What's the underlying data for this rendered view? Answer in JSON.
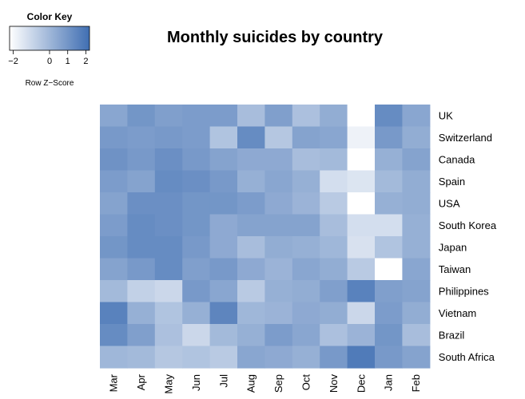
{
  "chart_data": {
    "type": "heatmap",
    "title": "Monthly suicides by country",
    "columns": [
      "Mar",
      "Apr",
      "May",
      "Jun",
      "Jul",
      "Aug",
      "Sep",
      "Oct",
      "Nov",
      "Dec",
      "Jan",
      "Feb"
    ],
    "rows": [
      "UK",
      "Switzerland",
      "Canada",
      "Spain",
      "USA",
      "South Korea",
      "Japan",
      "Taiwan",
      "Philippines",
      "Vietnam",
      "Brazil",
      "South Africa"
    ],
    "values": [
      [
        0.5,
        1.0,
        0.7,
        0.8,
        0.8,
        -0.2,
        0.7,
        -0.3,
        0.3,
        -2.2,
        1.3,
        0.5
      ],
      [
        0.9,
        0.8,
        0.9,
        0.8,
        -0.4,
        1.3,
        -0.5,
        0.6,
        0.5,
        -1.8,
        0.9,
        0.3
      ],
      [
        1.1,
        0.9,
        1.2,
        0.9,
        0.6,
        0.4,
        0.4,
        -0.2,
        -0.1,
        -2.2,
        0.2,
        0.6
      ],
      [
        0.8,
        0.6,
        1.3,
        1.2,
        0.9,
        0.2,
        0.5,
        0.2,
        -1.2,
        -1.4,
        -0.1,
        0.3
      ],
      [
        0.6,
        1.2,
        1.2,
        1.0,
        1.0,
        0.8,
        0.4,
        0.1,
        -0.6,
        -2.2,
        0.2,
        0.3
      ],
      [
        0.8,
        1.3,
        1.2,
        1.0,
        0.4,
        0.6,
        0.6,
        0.6,
        -0.2,
        -1.2,
        -1.2,
        0.2
      ],
      [
        1.0,
        1.3,
        1.3,
        0.9,
        0.4,
        -0.2,
        0.3,
        0.2,
        0.0,
        -1.3,
        -0.4,
        0.2
      ],
      [
        0.6,
        0.9,
        1.3,
        0.7,
        0.9,
        0.4,
        0.1,
        0.5,
        0.3,
        -0.6,
        -2.2,
        0.5
      ],
      [
        -0.1,
        -0.8,
        -1.0,
        0.9,
        0.5,
        -0.6,
        0.2,
        0.3,
        0.7,
        1.6,
        0.7,
        0.6
      ],
      [
        1.6,
        0.2,
        -0.4,
        0.2,
        1.5,
        0.0,
        0.1,
        0.4,
        0.3,
        -1.0,
        0.8,
        0.3
      ],
      [
        1.3,
        0.7,
        -0.3,
        -1.0,
        -0.1,
        0.2,
        0.8,
        0.5,
        -0.3,
        0.1,
        1.0,
        -0.2
      ],
      [
        0.0,
        -0.1,
        -0.5,
        -0.4,
        -0.6,
        0.5,
        0.4,
        0.2,
        0.9,
        1.8,
        0.9,
        0.6
      ]
    ],
    "colorkey": {
      "title": "Color Key",
      "label": "Row Z−Score",
      "ticks": [
        -2,
        0,
        1,
        2
      ],
      "tick_labels": [
        "−2",
        "0",
        "1",
        "2"
      ],
      "range": [
        -2.2,
        2.2
      ],
      "low_color": "#ffffff",
      "high_color": "#3f6eb2"
    }
  }
}
